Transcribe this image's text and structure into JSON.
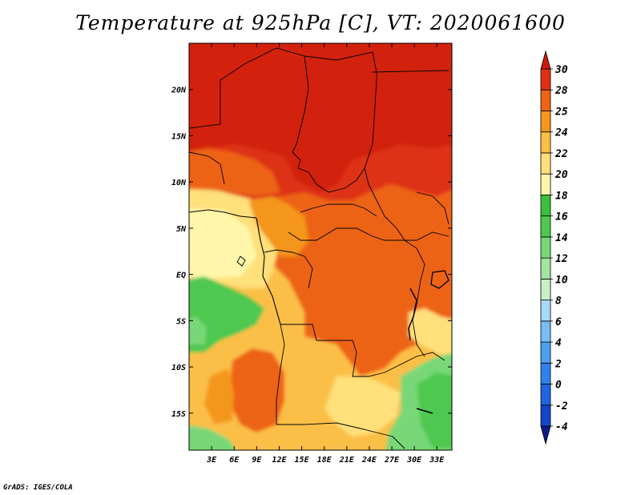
{
  "title": "Temperature at 925hPa [C], VT: 2020061600",
  "credit": "GrADS: IGES/COLA",
  "map": {
    "lon_range": [
      0,
      35
    ],
    "lat_range": [
      -19,
      25
    ],
    "lat_ticks": [
      {
        "label": "20N",
        "value": 20
      },
      {
        "label": "15N",
        "value": 15
      },
      {
        "label": "10N",
        "value": 10
      },
      {
        "label": "5N",
        "value": 5
      },
      {
        "label": "EQ",
        "value": 0
      },
      {
        "label": "5S",
        "value": -5
      },
      {
        "label": "10S",
        "value": -10
      },
      {
        "label": "15S",
        "value": -15
      }
    ],
    "lon_ticks": [
      {
        "label": "3E",
        "value": 3
      },
      {
        "label": "6E",
        "value": 6
      },
      {
        "label": "9E",
        "value": 9
      },
      {
        "label": "12E",
        "value": 12
      },
      {
        "label": "15E",
        "value": 15
      },
      {
        "label": "18E",
        "value": 18
      },
      {
        "label": "21E",
        "value": 21
      },
      {
        "label": "24E",
        "value": 24
      },
      {
        "label": "27E",
        "value": 27
      },
      {
        "label": "30E",
        "value": 30
      },
      {
        "label": "33E",
        "value": 33
      }
    ]
  },
  "colorbar": {
    "levels": [
      "-4",
      "-2",
      "0",
      "2",
      "4",
      "6",
      "8",
      "10",
      "12",
      "14",
      "16",
      "18",
      "20",
      "22",
      "24",
      "25",
      "28",
      "30"
    ],
    "colors": [
      "#0d1a8a",
      "#1446c8",
      "#1e64e0",
      "#2f82eb",
      "#4ea0f0",
      "#78bdf5",
      "#a8d8fa",
      "#c8f0c8",
      "#a0e6a0",
      "#78d878",
      "#50c850",
      "#3cbf3c",
      "#fff6aa",
      "#ffe07a",
      "#fbbf46",
      "#f5961e",
      "#ed6414",
      "#de3012",
      "#cc1a0a"
    ]
  }
}
